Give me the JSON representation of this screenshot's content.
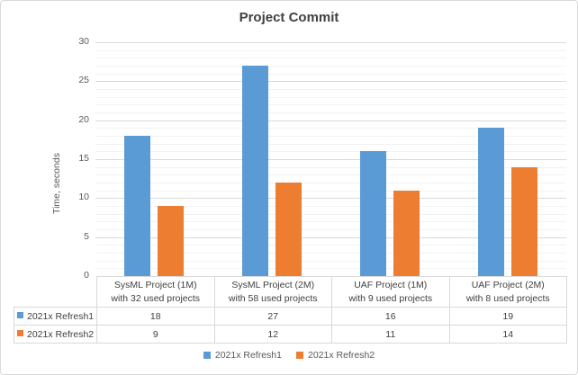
{
  "chart_data": {
    "type": "bar",
    "title": "Project Commit",
    "categories": [
      "SysML Project (1M)\nwith 32 used projects",
      "SysML Project (2M)\nwith 58 used projects",
      "UAF Project (1M)\nwith 9 used projects",
      "UAF Project (2M)\nwith 8 used projects"
    ],
    "series": [
      {
        "name": "2021x Refresh1",
        "color": "#5B9BD5",
        "values": [
          18,
          27,
          16,
          19
        ]
      },
      {
        "name": "2021x Refresh2",
        "color": "#ED7D31",
        "values": [
          9,
          12,
          11,
          14
        ]
      }
    ],
    "xlabel": "",
    "ylabel": "Time, seconds",
    "ylim": [
      0,
      30
    ],
    "y_major_unit": 5,
    "y_minor_unit": 1,
    "y_tick_labels": [
      "0",
      "5",
      "10",
      "15",
      "20",
      "25",
      "30"
    ],
    "grid": true,
    "legend_position": "bottom",
    "has_data_table": true
  },
  "legend": {
    "items": [
      {
        "label": "2021x Refresh1",
        "color": "#5B9BD5"
      },
      {
        "label": "2021x Refresh2",
        "color": "#ED7D31"
      }
    ]
  },
  "colors": {
    "series1": "#5B9BD5",
    "series2": "#ED7D31",
    "major_gridline": "#D9D9D9",
    "minor_gridline": "#F2F2F2",
    "table_border": "#D9D9D9",
    "title_text": "#404040",
    "axis_text": "#595959",
    "frame_border": "#D9D9D9",
    "background": "#FFFFFF"
  }
}
